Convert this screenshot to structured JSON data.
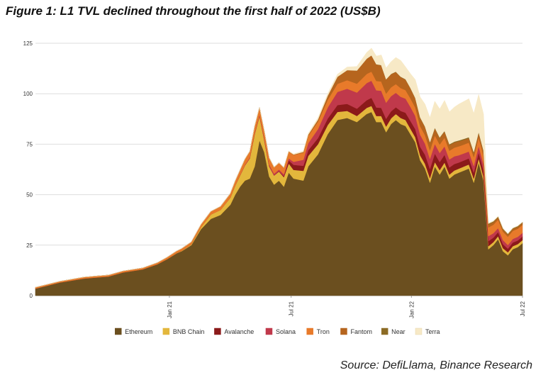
{
  "title": "Figure 1: L1 TVL declined throughout the first half of 2022 (US$B)",
  "source": "Source: DefiLlama, Binance Research",
  "chart_data": {
    "type": "area",
    "stacked": true,
    "ylim": [
      0,
      125
    ],
    "yticks": [
      0,
      25,
      50,
      75,
      100,
      125
    ],
    "ytick_labels": [
      "0",
      "25",
      "50",
      "75",
      "100",
      "125"
    ],
    "xlim": [
      0,
      100
    ],
    "xticks": [
      {
        "pos": 27.5,
        "label": "Jan 21"
      },
      {
        "pos": 52.5,
        "label": "Jul 21"
      },
      {
        "pos": 77.2,
        "label": "Jan 22"
      },
      {
        "pos": 100,
        "label": "Jul 22"
      }
    ],
    "legend_position": "bottom",
    "x": [
      0,
      5,
      10,
      15,
      18,
      22,
      25,
      27,
      29,
      30,
      32,
      34,
      36,
      38,
      40,
      41,
      42,
      43,
      44,
      45,
      46,
      47,
      48,
      49,
      50,
      51,
      52,
      53,
      55,
      56,
      58,
      60,
      62,
      64,
      66,
      68,
      69,
      70,
      71,
      72,
      73,
      74,
      75,
      76,
      77,
      78,
      79,
      80,
      81,
      82,
      83,
      84,
      85,
      86,
      87,
      88,
      89,
      90,
      91,
      92,
      93,
      94,
      95,
      96,
      97,
      98,
      99,
      100
    ],
    "series": [
      {
        "name": "Ethereum",
        "color": "#6b4f1f",
        "values": [
          3.5,
          6.5,
          8.5,
          9.5,
          11.5,
          13,
          15.5,
          18,
          21,
          22,
          25,
          33,
          38,
          40,
          45,
          50,
          54,
          57,
          58,
          64,
          77,
          71,
          59,
          55,
          57,
          54,
          61,
          58,
          57,
          64,
          70,
          80,
          87,
          88,
          86,
          90,
          91,
          86,
          86,
          81,
          85,
          87,
          85,
          84,
          80,
          76,
          67,
          63,
          56,
          64,
          60,
          64,
          58,
          60,
          61,
          62,
          63,
          56,
          66,
          57,
          23,
          25,
          28,
          22,
          20,
          23,
          24,
          26
        ]
      },
      {
        "name": "BNB Chain",
        "color": "#e3b73c",
        "values": [
          0,
          0,
          0,
          0,
          0,
          0,
          0,
          0.05,
          0.1,
          0.2,
          0.4,
          1.0,
          2.2,
          2.5,
          3.5,
          4.5,
          5.5,
          7.5,
          10,
          16,
          12,
          6,
          5,
          4.5,
          4.5,
          4.7,
          4.5,
          4.3,
          4.8,
          5.2,
          5,
          4.5,
          4,
          3.5,
          3,
          3,
          3,
          3,
          3,
          2.8,
          2.8,
          3,
          3,
          3,
          2.7,
          2.5,
          2.5,
          2.3,
          2.3,
          2.2,
          2.2,
          2,
          2,
          2,
          2,
          2,
          2,
          2,
          2,
          2,
          1.5,
          1.5,
          1.5,
          1.5,
          1.5,
          1.5,
          1.5,
          1.5
        ]
      },
      {
        "name": "Avalanche",
        "color": "#8b1a1a",
        "values": [
          0,
          0,
          0,
          0,
          0,
          0,
          0,
          0,
          0,
          0,
          0,
          0,
          0,
          0,
          0,
          0,
          0,
          0,
          0.05,
          0.1,
          0.1,
          0.1,
          0.1,
          0.1,
          0.2,
          0.5,
          1.5,
          2.5,
          2.5,
          2.8,
          3,
          3.2,
          3.4,
          3.5,
          3.6,
          3.8,
          4,
          4.2,
          4,
          3.8,
          3.5,
          3.3,
          3.5,
          3.6,
          3.8,
          4,
          4.2,
          4.5,
          4.5,
          4.2,
          4,
          3.8,
          3.5,
          3.2,
          3,
          3,
          3,
          3,
          3,
          3,
          2.5,
          2.2,
          2,
          2,
          1.8,
          1.8,
          1.8,
          1.8
        ]
      },
      {
        "name": "Solana",
        "color": "#c0394b",
        "values": [
          0,
          0,
          0,
          0,
          0,
          0,
          0,
          0,
          0,
          0,
          0,
          0,
          0,
          0,
          0.05,
          0.1,
          0.2,
          0.3,
          0.4,
          0.5,
          0.6,
          0.8,
          0.8,
          0.8,
          0.8,
          0.9,
          1.0,
          1.5,
          3,
          3.5,
          4.5,
          5.5,
          6.5,
          7.5,
          8,
          8.5,
          8.5,
          8.5,
          8.5,
          8,
          7.5,
          7.2,
          7,
          7,
          7,
          6.5,
          6,
          5.5,
          5,
          4.8,
          4.5,
          4.2,
          4,
          3.8,
          3.6,
          3.5,
          3.4,
          3.3,
          3.2,
          3,
          2.5,
          2.2,
          2,
          2,
          1.8,
          1.8,
          1.8,
          1.8
        ]
      },
      {
        "name": "Tron",
        "color": "#e87a2a",
        "values": [
          0.6,
          0.6,
          0.7,
          0.7,
          0.7,
          0.7,
          0.8,
          0.9,
          1.0,
          1.1,
          1.2,
          1.3,
          1.5,
          1.7,
          2,
          2.2,
          2.5,
          2.8,
          3,
          3.2,
          3.5,
          3.5,
          3.3,
          3.2,
          3.3,
          3.3,
          3.4,
          3.4,
          3.5,
          3.6,
          3.7,
          3.8,
          4,
          4.2,
          4.4,
          4.5,
          4.5,
          4.6,
          4.6,
          4.5,
          4.4,
          4.3,
          4.3,
          4.2,
          4.2,
          4.2,
          4.2,
          4.2,
          4.2,
          4.2,
          4.2,
          4.3,
          4.3,
          4.3,
          4.4,
          4.4,
          4.4,
          4.4,
          4.4,
          4.4,
          4.3,
          4.2,
          4.2,
          4.2,
          4.1,
          4,
          4,
          4
        ]
      },
      {
        "name": "Fantom",
        "color": "#b6651e",
        "values": [
          0,
          0,
          0,
          0,
          0,
          0,
          0,
          0,
          0,
          0,
          0,
          0,
          0,
          0,
          0,
          0,
          0,
          0,
          0,
          0,
          0,
          0,
          0,
          0,
          0,
          0,
          0.1,
          0.2,
          0.4,
          0.6,
          1.0,
          2,
          3.5,
          5,
          6.5,
          7.5,
          8,
          8.2,
          8,
          7,
          6.5,
          6,
          5.5,
          5.2,
          5,
          4.5,
          4.2,
          4,
          3.8,
          3.5,
          3.2,
          3,
          2.8,
          2.6,
          2.5,
          2.3,
          2.2,
          2,
          2,
          2,
          1.5,
          1.3,
          1.2,
          1.2,
          1.1,
          1,
          1,
          1
        ]
      },
      {
        "name": "Near",
        "color": "#8c6b25",
        "values": [
          0,
          0,
          0,
          0,
          0,
          0,
          0,
          0,
          0,
          0,
          0,
          0,
          0,
          0,
          0,
          0,
          0,
          0,
          0,
          0,
          0,
          0,
          0,
          0,
          0,
          0,
          0,
          0,
          0,
          0,
          0,
          0,
          0,
          0,
          0,
          0.05,
          0.05,
          0.1,
          0.1,
          0.1,
          0.1,
          0.15,
          0.15,
          0.2,
          0.2,
          0.2,
          0.2,
          0.25,
          0.3,
          0.3,
          0.3,
          0.35,
          0.4,
          0.4,
          0.45,
          0.5,
          0.5,
          0.5,
          0.5,
          0.5,
          0.4,
          0.4,
          0.3,
          0.3,
          0.3,
          0.3,
          0.3,
          0.3
        ]
      },
      {
        "name": "Terra",
        "color": "#f7e9c6",
        "values": [
          0,
          0,
          0,
          0,
          0,
          0,
          0,
          0,
          0,
          0,
          0,
          0,
          0,
          0,
          0,
          0,
          0,
          0,
          0,
          0,
          0,
          0,
          0,
          0,
          0,
          0,
          0.2,
          0.3,
          0.5,
          0.6,
          0.8,
          1.0,
          1.2,
          1.5,
          2,
          3,
          3.5,
          4,
          5,
          5.5,
          6,
          7,
          8,
          6,
          7,
          9,
          10,
          11,
          12,
          13,
          14,
          15,
          16,
          17,
          18,
          18.5,
          19,
          19,
          18.5,
          18,
          0.3,
          0.2,
          0.1,
          0,
          0,
          0,
          0,
          0
        ]
      }
    ]
  }
}
